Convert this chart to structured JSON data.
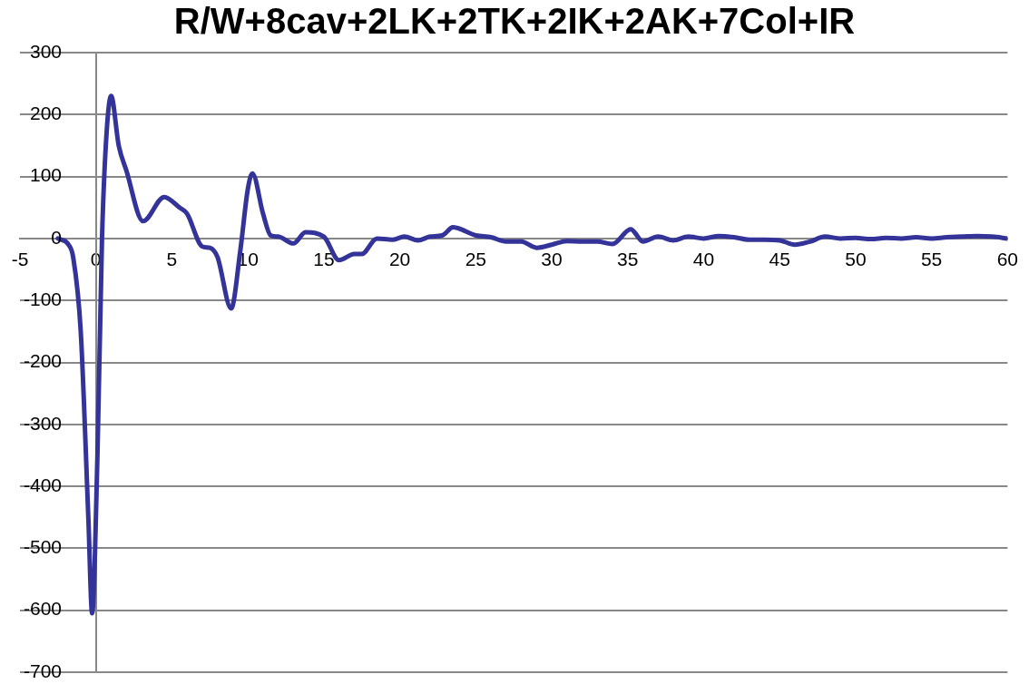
{
  "chart_data": {
    "type": "line",
    "title": "R/W+8cav+2LK+2TK+2IK+2AK+7Col+IR",
    "x": [
      -2.5,
      -1.8,
      -1.5,
      -1,
      -0.5,
      -0.25,
      0.1,
      0.4,
      0.7,
      1,
      1.5,
      2,
      3.1,
      4.5,
      5.5,
      6,
      7,
      7.5,
      8,
      8.9,
      9.5,
      10,
      10.3,
      11,
      11.5,
      12,
      13,
      13.8,
      15,
      16,
      17,
      17.5,
      18.5,
      19.5,
      20.3,
      21.2,
      22,
      22.8,
      23.5,
      25,
      26,
      27,
      28,
      29,
      30,
      31,
      32,
      33,
      34,
      35.2,
      36,
      37,
      38,
      39,
      40,
      41,
      42,
      43,
      44,
      45,
      46,
      47,
      48,
      49,
      50,
      51,
      52,
      53,
      54,
      55,
      56,
      57,
      58,
      59,
      60
    ],
    "series": [
      {
        "color": "#333399",
        "values": [
          0,
          -10,
          -30,
          -150,
          -450,
          -605,
          -350,
          0,
          170,
          230,
          150,
          110,
          28,
          67,
          50,
          40,
          -13,
          -15,
          -30,
          -113,
          -20,
          80,
          105,
          40,
          5,
          3,
          -8,
          10,
          3,
          -35,
          -25,
          -25,
          0,
          -2,
          3,
          -3,
          3,
          5,
          18,
          5,
          2,
          -5,
          -5,
          -15,
          -10,
          -4,
          -5,
          -5,
          -9,
          15,
          -5,
          3,
          -3,
          3,
          0,
          4,
          2,
          -2,
          -2,
          -3,
          -10,
          -5,
          3,
          0,
          1,
          -1,
          1,
          0,
          2,
          0,
          2,
          3,
          4,
          3,
          0
        ]
      }
    ],
    "xlim": [
      -5,
      60
    ],
    "xticks": [
      -5,
      0,
      5,
      10,
      15,
      20,
      25,
      30,
      35,
      40,
      45,
      50,
      55,
      60
    ],
    "ylim": [
      -700,
      300
    ],
    "yticks": [
      -700,
      -600,
      -500,
      -400,
      -300,
      -200,
      -100,
      0,
      100,
      200,
      300
    ],
    "grid": "y",
    "legend": false,
    "marker": "none",
    "line_style": "solid"
  }
}
